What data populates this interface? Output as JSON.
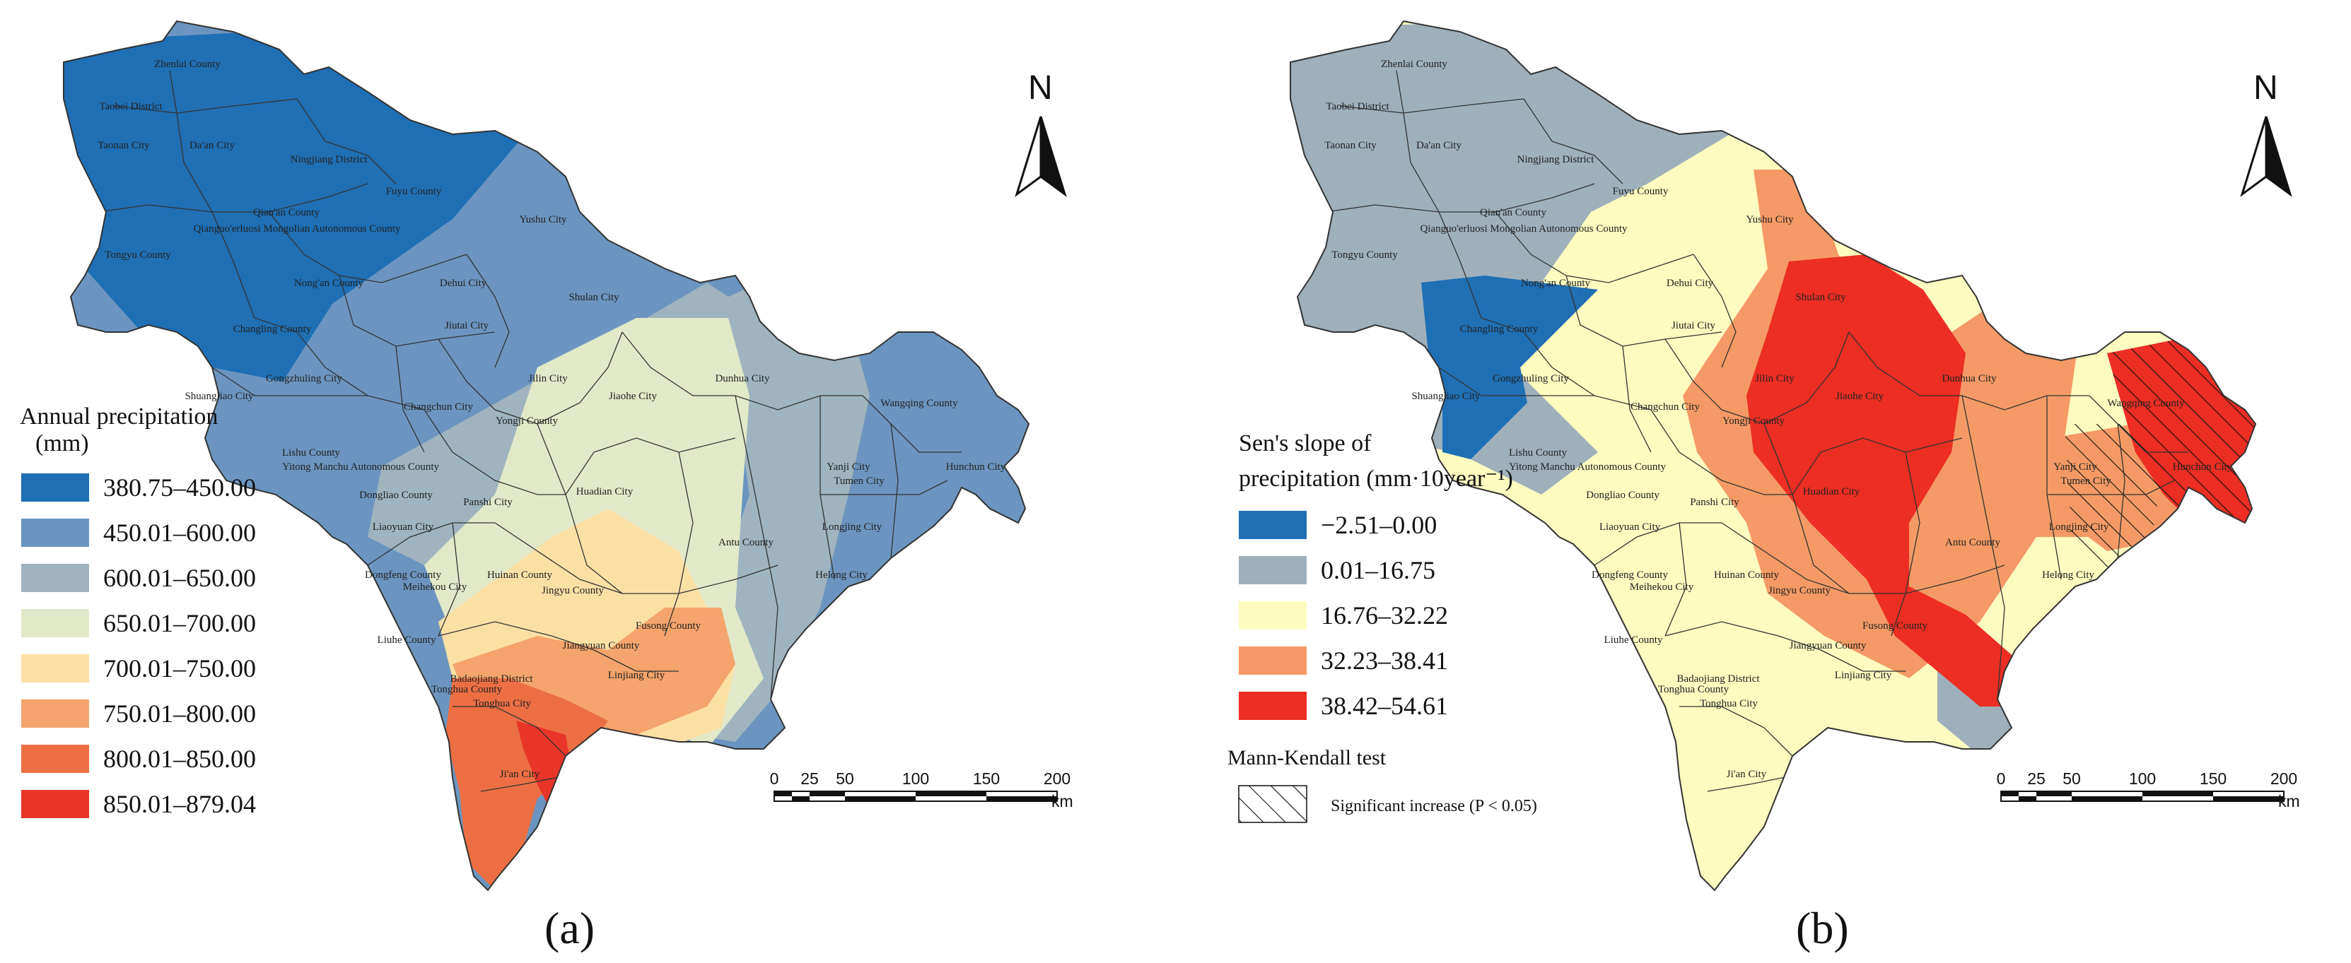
{
  "panels": [
    {
      "caption": "(a)",
      "legend": {
        "title_line1": "Annual precipitation",
        "title_line2": "(mm)",
        "items": [
          {
            "range": "380.75–450.00",
            "color": "#1f6fb5"
          },
          {
            "range": "450.01–600.00",
            "color": "#6b95c0"
          },
          {
            "range": "600.01–650.00",
            "color": "#9fb4be"
          },
          {
            "range": "650.01–700.00",
            "color": "#e2e9c9"
          },
          {
            "range": "700.01–750.00",
            "color": "#fbe0a6"
          },
          {
            "range": "750.01–800.00",
            "color": "#f4a46c"
          },
          {
            "range": "800.01–850.00",
            "color": "#ec6f44"
          },
          {
            "range": "850.01–879.04",
            "color": "#e8352a"
          }
        ]
      },
      "scale": {
        "ticks": [
          "0",
          "25",
          "50",
          "100",
          "150",
          "200"
        ],
        "unit": "km"
      },
      "north": "N"
    },
    {
      "caption": "(b)",
      "legend": {
        "title_line1": "Sen's slope of",
        "title_line2": "precipitation (mm·10year⁻¹)",
        "items": [
          {
            "range": "−2.51–0.00",
            "color": "#1f6fb5"
          },
          {
            "range": "0.01–16.75",
            "color": "#9fb0bb"
          },
          {
            "range": "16.76–32.22",
            "color": "#fdfbc0"
          },
          {
            "range": "32.23–38.41",
            "color": "#f59a66"
          },
          {
            "range": "38.42–54.61",
            "color": "#ec2e24"
          }
        ],
        "mk_title": "Mann-Kendall test",
        "mk_item": "Significant increase (P < 0.05)"
      },
      "scale": {
        "ticks": [
          "0",
          "25",
          "50",
          "100",
          "150",
          "200"
        ],
        "unit": "km"
      },
      "north": "N"
    }
  ],
  "counties": [
    "Zhenlai County",
    "Taobei District",
    "Taonan City",
    "Da'an City",
    "Ningjiang District",
    "Fuyu County",
    "Qian'an County",
    "Qianguo'erluosi Mongolian Autonomous County",
    "Yushu City",
    "Tongyu County",
    "Nong'an County",
    "Dehui City",
    "Changling County",
    "Shulan City",
    "Jiutai City",
    "Jilin City",
    "Jiaohe City",
    "Dunhua City",
    "Gongzhuling City",
    "Changchun City",
    "Shuangliao City",
    "Wangqing County",
    "Yongji County",
    "Lishu County",
    "Yitong Manchu Autonomous County",
    "Yanji City",
    "Tumen City",
    "Hunchun City",
    "Dongliao County",
    "Huadian City",
    "Panshi City",
    "Longjing City",
    "Liaoyuan City",
    "Antu County",
    "Dongfeng County",
    "Huinan County",
    "Meihekou City",
    "Helong City",
    "Jingyu County",
    "Fusong County",
    "Liuhe County",
    "Jiangyuan County",
    "Badaojiang District",
    "Linjiang City",
    "Tonghua County",
    "Tonghua City",
    "Ji'an City"
  ]
}
